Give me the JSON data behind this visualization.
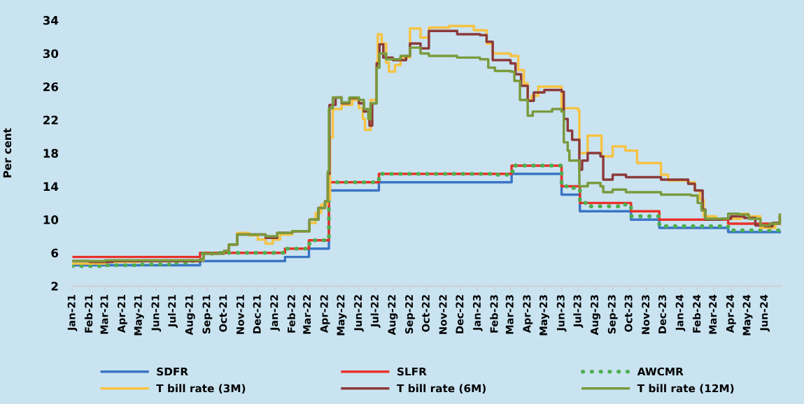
{
  "chart_data": {
    "type": "step",
    "ylabel": "Per cent",
    "ylim": [
      2,
      34
    ],
    "yticks": [
      2,
      6,
      10,
      14,
      18,
      22,
      26,
      30,
      34
    ],
    "xlim": [
      "2021-01-01",
      "2024-07-01"
    ],
    "xticks": [
      {
        "value": "2021-01-01",
        "label": "Jan-21"
      },
      {
        "value": "2021-02-01",
        "label": "Feb-21"
      },
      {
        "value": "2021-03-01",
        "label": "Mar-21"
      },
      {
        "value": "2021-04-01",
        "label": "Apr-21"
      },
      {
        "value": "2021-05-01",
        "label": "May-21"
      },
      {
        "value": "2021-06-01",
        "label": "Jun-21"
      },
      {
        "value": "2021-07-01",
        "label": "Jul-21"
      },
      {
        "value": "2021-08-01",
        "label": "Aug-21"
      },
      {
        "value": "2021-09-01",
        "label": "Sep-21"
      },
      {
        "value": "2021-10-01",
        "label": "Oct-21"
      },
      {
        "value": "2021-11-01",
        "label": "Nov-21"
      },
      {
        "value": "2021-12-01",
        "label": "Dec-21"
      },
      {
        "value": "2022-01-01",
        "label": "Jan-22"
      },
      {
        "value": "2022-02-01",
        "label": "Feb-22"
      },
      {
        "value": "2022-03-01",
        "label": "Mar-22"
      },
      {
        "value": "2022-04-01",
        "label": "Apr-22"
      },
      {
        "value": "2022-05-01",
        "label": "May-22"
      },
      {
        "value": "2022-06-01",
        "label": "Jun-22"
      },
      {
        "value": "2022-07-01",
        "label": "Jul-22"
      },
      {
        "value": "2022-08-01",
        "label": "Aug-22"
      },
      {
        "value": "2022-09-01",
        "label": "Sep-22"
      },
      {
        "value": "2022-10-01",
        "label": "Oct-22"
      },
      {
        "value": "2022-11-01",
        "label": "Nov-22"
      },
      {
        "value": "2022-12-01",
        "label": "Dec-22"
      },
      {
        "value": "2023-01-01",
        "label": "Jan-23"
      },
      {
        "value": "2023-02-01",
        "label": "Feb-23"
      },
      {
        "value": "2023-03-01",
        "label": "Mar-23"
      },
      {
        "value": "2023-04-01",
        "label": "Apr-23"
      },
      {
        "value": "2023-05-01",
        "label": "May-23"
      },
      {
        "value": "2023-06-01",
        "label": "Jun-23"
      },
      {
        "value": "2023-07-01",
        "label": "Jul-23"
      },
      {
        "value": "2023-08-01",
        "label": "Aug-23"
      },
      {
        "value": "2023-09-01",
        "label": "Sep-23"
      },
      {
        "value": "2023-10-01",
        "label": "Oct-23"
      },
      {
        "value": "2023-11-01",
        "label": "Nov-23"
      },
      {
        "value": "2023-12-01",
        "label": "Dec-23"
      },
      {
        "value": "2024-01-01",
        "label": "Jan-24"
      },
      {
        "value": "2024-02-01",
        "label": "Feb-24"
      },
      {
        "value": "2024-03-01",
        "label": "Mar-24"
      },
      {
        "value": "2024-04-01",
        "label": "Apr-24"
      },
      {
        "value": "2024-05-01",
        "label": "May-24"
      },
      {
        "value": "2024-06-01",
        "label": "Jun-24"
      }
    ],
    "grid": false,
    "legend": "bottom",
    "marker": "none",
    "series": [
      {
        "name": "SDFR",
        "color": "#3a75c4",
        "x": [
          "2021-01-01",
          "2021-08-19",
          "2022-01-19",
          "2022-03-03",
          "2022-04-08",
          "2022-07-07",
          "2023-03-03",
          "2023-06-01",
          "2023-07-04",
          "2023-10-04",
          "2023-11-24",
          "2024-03-27",
          "2024-06-28"
        ],
        "values": [
          4.5,
          5.0,
          5.5,
          6.5,
          13.5,
          14.5,
          15.5,
          13.0,
          11.0,
          10.0,
          9.0,
          8.5,
          8.5
        ]
      },
      {
        "name": "SLFR",
        "color": "#e8312a",
        "x": [
          "2021-01-01",
          "2021-08-19",
          "2022-01-19",
          "2022-03-03",
          "2022-04-08",
          "2022-07-07",
          "2023-03-03",
          "2023-06-01",
          "2023-07-04",
          "2023-10-04",
          "2023-11-24",
          "2024-03-27",
          "2024-06-28"
        ],
        "values": [
          5.5,
          6.0,
          6.5,
          7.5,
          14.5,
          15.5,
          16.5,
          14.0,
          12.0,
          11.0,
          10.0,
          9.5,
          9.5
        ]
      },
      {
        "name": "AWCMR",
        "color": "#4caf50",
        "line_style": "dotted",
        "x": [
          "2021-01-01",
          "2021-03-01",
          "2021-05-01",
          "2021-07-01",
          "2021-08-01",
          "2021-08-20",
          "2021-09-10",
          "2022-01-20",
          "2022-03-04",
          "2022-04-08",
          "2022-07-07",
          "2023-02-01",
          "2023-03-03",
          "2023-03-10",
          "2023-06-01",
          "2023-06-10",
          "2023-07-04",
          "2023-07-15",
          "2023-09-20",
          "2023-10-04",
          "2023-11-24",
          "2024-03-27",
          "2024-06-28"
        ],
        "values": [
          4.4,
          4.5,
          4.6,
          4.8,
          5.0,
          5.9,
          6.0,
          6.5,
          7.5,
          14.5,
          15.5,
          15.4,
          15.8,
          16.5,
          14.0,
          13.8,
          12.0,
          11.6,
          11.8,
          10.4,
          9.2,
          8.7,
          8.8
        ]
      },
      {
        "name": "T bill rate (3M)",
        "color": "#f6c343",
        "x": [
          "2021-01-01",
          "2021-02-15",
          "2021-03-01",
          "2021-05-01",
          "2021-08-15",
          "2021-08-25",
          "2021-10-01",
          "2021-10-10",
          "2021-10-25",
          "2021-11-15",
          "2021-12-01",
          "2021-12-15",
          "2021-12-28",
          "2022-01-10",
          "2022-02-01",
          "2022-03-04",
          "2022-03-15",
          "2022-03-25",
          "2022-04-05",
          "2022-04-10",
          "2022-04-15",
          "2022-05-01",
          "2022-05-20",
          "2022-06-01",
          "2022-06-08",
          "2022-06-12",
          "2022-06-22",
          "2022-07-03",
          "2022-07-05",
          "2022-07-12",
          "2022-07-20",
          "2022-07-25",
          "2022-08-05",
          "2022-08-15",
          "2022-09-01",
          "2022-09-20",
          "2022-10-05",
          "2022-11-10",
          "2022-12-25",
          "2023-01-17",
          "2023-01-28",
          "2023-03-01",
          "2023-03-15",
          "2023-03-25",
          "2023-04-01",
          "2023-04-08",
          "2023-04-20",
          "2023-06-01",
          "2023-07-01",
          "2023-07-03",
          "2023-07-18",
          "2023-08-12",
          "2023-09-01",
          "2023-09-24",
          "2023-10-15",
          "2023-11-27",
          "2023-12-10",
          "2024-01-15",
          "2024-01-27",
          "2024-02-05",
          "2024-02-12",
          "2024-03-05",
          "2024-04-20",
          "2024-05-03",
          "2024-05-24",
          "2024-06-20",
          "2024-06-28"
        ],
        "values": [
          4.7,
          4.7,
          4.9,
          5.0,
          5.1,
          5.9,
          6.2,
          7.0,
          8.4,
          8.1,
          7.6,
          7.1,
          7.6,
          8.2,
          8.6,
          9.6,
          10.8,
          11.8,
          12.4,
          19.9,
          23.3,
          23.8,
          24.4,
          23.4,
          22.1,
          20.8,
          24.4,
          29.0,
          32.3,
          31.2,
          28.9,
          27.8,
          28.6,
          29.5,
          33.0,
          31.9,
          33.1,
          33.3,
          32.8,
          31.2,
          30.0,
          29.7,
          28.0,
          26.4,
          24.4,
          24.9,
          26.0,
          23.4,
          23.1,
          18.0,
          20.1,
          17.6,
          18.8,
          18.3,
          16.8,
          15.4,
          14.7,
          14.5,
          13.5,
          12.4,
          10.4,
          10.1,
          10.7,
          10.4,
          9.0,
          9.6,
          10.4
        ]
      },
      {
        "name": "T bill rate (6M)",
        "color": "#8b3a3a",
        "x": [
          "2021-01-01",
          "2021-02-01",
          "2021-03-15",
          "2021-08-20",
          "2021-08-25",
          "2021-10-01",
          "2021-10-10",
          "2021-10-25",
          "2021-12-15",
          "2022-01-05",
          "2022-02-01",
          "2022-03-04",
          "2022-03-20",
          "2022-04-01",
          "2022-04-06",
          "2022-04-09",
          "2022-04-20",
          "2022-05-01",
          "2022-05-15",
          "2022-06-01",
          "2022-06-10",
          "2022-06-20",
          "2022-06-25",
          "2022-07-03",
          "2022-07-08",
          "2022-07-15",
          "2022-08-01",
          "2022-08-25",
          "2022-09-01",
          "2022-09-20",
          "2022-10-05",
          "2022-11-25",
          "2023-01-05",
          "2023-01-17",
          "2023-01-28",
          "2023-03-01",
          "2023-03-10",
          "2023-03-20",
          "2023-04-01",
          "2023-04-12",
          "2023-05-01",
          "2023-06-01",
          "2023-06-05",
          "2023-06-12",
          "2023-06-20",
          "2023-07-03",
          "2023-07-08",
          "2023-07-18",
          "2023-08-10",
          "2023-08-15",
          "2023-09-01",
          "2023-09-25",
          "2023-11-27",
          "2024-01-15",
          "2024-01-27",
          "2024-02-10",
          "2024-02-15",
          "2024-03-15",
          "2024-04-01",
          "2024-04-25",
          "2024-05-15",
          "2024-06-01",
          "2024-06-15",
          "2024-06-28"
        ],
        "values": [
          5.0,
          4.9,
          5.0,
          5.2,
          5.9,
          6.2,
          7.0,
          8.2,
          7.8,
          8.4,
          8.6,
          10.0,
          11.4,
          12.2,
          15.5,
          23.8,
          24.7,
          24.0,
          24.6,
          24.0,
          23.0,
          21.3,
          24.0,
          28.8,
          31.1,
          29.5,
          29.2,
          29.7,
          31.2,
          30.6,
          32.7,
          32.3,
          32.2,
          31.4,
          29.2,
          28.8,
          27.5,
          26.1,
          24.3,
          25.3,
          25.6,
          25.4,
          22.1,
          20.7,
          19.6,
          16.0,
          17.1,
          18.0,
          17.6,
          14.8,
          15.4,
          15.1,
          14.8,
          14.3,
          13.5,
          11.2,
          10.0,
          10.1,
          10.4,
          10.2,
          9.3,
          9.2,
          9.6,
          10.3
        ]
      },
      {
        "name": "T bill rate (12M)",
        "color": "#7a9a3c",
        "x": [
          "2021-01-01",
          "2021-02-01",
          "2021-03-01",
          "2021-08-20",
          "2021-08-25",
          "2021-10-01",
          "2021-10-10",
          "2021-10-25",
          "2021-12-15",
          "2022-01-05",
          "2022-02-01",
          "2022-03-04",
          "2022-03-20",
          "2022-04-01",
          "2022-04-06",
          "2022-04-08",
          "2022-04-15",
          "2022-05-01",
          "2022-05-15",
          "2022-06-01",
          "2022-06-10",
          "2022-06-18",
          "2022-06-22",
          "2022-07-03",
          "2022-07-08",
          "2022-07-20",
          "2022-08-15",
          "2022-09-01",
          "2022-09-20",
          "2022-10-05",
          "2022-11-25",
          "2023-01-05",
          "2023-01-20",
          "2023-02-01",
          "2023-03-01",
          "2023-03-08",
          "2023-03-18",
          "2023-04-01",
          "2023-04-10",
          "2023-05-15",
          "2023-06-01",
          "2023-06-05",
          "2023-06-12",
          "2023-06-15",
          "2023-07-03",
          "2023-07-18",
          "2023-08-10",
          "2023-08-15",
          "2023-09-01",
          "2023-09-25",
          "2023-11-27",
          "2024-01-20",
          "2024-02-01",
          "2024-02-08",
          "2024-02-15",
          "2024-03-27",
          "2024-04-15",
          "2024-05-03",
          "2024-05-24",
          "2024-06-10",
          "2024-06-28"
        ],
        "values": [
          5.0,
          5.0,
          5.1,
          5.2,
          5.9,
          6.2,
          7.0,
          8.2,
          8.0,
          8.4,
          8.6,
          10.0,
          11.4,
          12.2,
          15.8,
          23.4,
          24.7,
          24.1,
          24.7,
          24.4,
          23.3,
          22.1,
          24.0,
          28.3,
          30.0,
          29.3,
          29.7,
          30.7,
          30.0,
          29.7,
          29.5,
          29.3,
          28.3,
          27.9,
          27.8,
          26.7,
          24.4,
          22.5,
          23.0,
          23.3,
          23.0,
          19.3,
          18.3,
          17.1,
          14.0,
          14.4,
          14.0,
          13.3,
          13.6,
          13.3,
          13.0,
          12.9,
          12.0,
          11.1,
          10.1,
          10.7,
          10.6,
          10.1,
          9.3,
          9.5,
          10.6
        ]
      }
    ]
  }
}
